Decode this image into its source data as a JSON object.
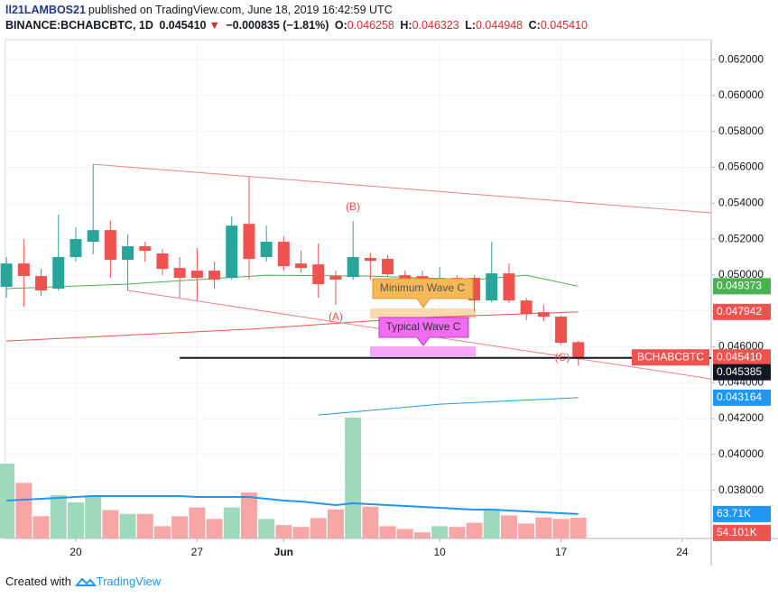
{
  "header": {
    "author": "ll21LAMBOS21",
    "published": "published on TradingView.com, June 18, 2019 16:42:59 UTC",
    "symbol": "BINANCE:BCHABCBTC, 1D",
    "last": "0.045410",
    "change": "−0.000835 (−1.81%)",
    "o_label": "O:",
    "o": "0.046258",
    "h_label": "H:",
    "h": "0.046323",
    "l_label": "L:",
    "l": "0.044948",
    "c_label": "C:",
    "c": "0.045410"
  },
  "chart_data": {
    "type": "candlestick",
    "x": [
      16,
      17,
      18,
      19,
      20,
      21,
      22,
      23,
      24,
      25,
      26,
      27,
      28,
      29,
      30,
      31,
      32,
      33,
      34,
      35,
      36,
      37,
      38,
      39,
      40,
      41,
      42,
      43,
      44,
      45,
      46,
      47,
      48,
      49
    ],
    "open": [
      0.04934,
      0.05064,
      0.04994,
      0.04924,
      0.051,
      0.05185,
      0.0525,
      0.05084,
      0.0516,
      0.0512,
      0.05039,
      0.05024,
      0.05024,
      0.04984,
      0.05285,
      0.051,
      0.05185,
      0.05064,
      0.05059,
      0.04994,
      0.04989,
      0.05095,
      0.0509,
      0.04999,
      0.04994,
      0.04899,
      0.04984,
      0.04984,
      0.04858,
      0.05009,
      0.04858,
      0.04793,
      0.04768,
      0.046258
    ],
    "high": [
      0.051,
      0.052,
      0.05034,
      0.05336,
      0.05265,
      0.05617,
      0.05301,
      0.05225,
      0.05185,
      0.05145,
      0.051,
      0.0515,
      0.05074,
      0.05326,
      0.05547,
      0.05275,
      0.05215,
      0.05135,
      0.05175,
      0.05024,
      0.05301,
      0.05125,
      0.0511,
      0.05024,
      0.05024,
      0.05044,
      0.04999,
      0.04999,
      0.05185,
      0.05064,
      0.04873,
      0.04833,
      0.04773,
      0.046323
    ],
    "low": [
      0.04873,
      0.04823,
      0.04883,
      0.04914,
      0.05074,
      0.05115,
      0.04984,
      0.04914,
      0.05074,
      0.04999,
      0.04873,
      0.04858,
      0.04924,
      0.04974,
      0.04974,
      0.05074,
      0.05024,
      0.05014,
      0.04873,
      0.04833,
      0.04974,
      0.04974,
      0.04994,
      0.04924,
      0.04873,
      0.04873,
      0.04873,
      0.04798,
      0.04848,
      0.04843,
      0.04748,
      0.04743,
      0.04612,
      0.044948
    ],
    "close": [
      0.05064,
      0.04994,
      0.04914,
      0.051,
      0.052,
      0.0525,
      0.05084,
      0.0516,
      0.05135,
      0.05034,
      0.04984,
      0.04984,
      0.04974,
      0.05275,
      0.0509,
      0.05185,
      0.05049,
      0.05039,
      0.04949,
      0.04974,
      0.051,
      0.05079,
      0.05004,
      0.04949,
      0.04959,
      0.04984,
      0.04949,
      0.04858,
      0.05009,
      0.04858,
      0.04783,
      0.04768,
      0.04622,
      0.04541
    ],
    "up_color": "#26a69a",
    "down_color": "#ef5350",
    "last_label": "0.045410",
    "symbol_tag": "BCHABCBTC",
    "xlim": [
      15.94,
      56.67
    ],
    "xticks": [
      20,
      27,
      {
        "value": 32,
        "label": "Jun"
      },
      {
        "value": 41,
        "label": "10"
      },
      {
        "value": 48,
        "label": "17"
      },
      {
        "value": 55,
        "label": "24"
      }
    ],
    "ylim": [
      0.03532,
      0.06311
    ],
    "yticks": [
      {
        "value": 0.038,
        "label": "0.038000"
      },
      {
        "value": 0.04,
        "label": "0.040000"
      },
      {
        "value": 0.042,
        "label": "0.042000"
      },
      {
        "value": 0.044,
        "label": "0.044000"
      },
      {
        "value": 0.046,
        "label": "0.046000"
      },
      {
        "value": 0.048,
        "label": "0.048000"
      },
      {
        "value": 0.05,
        "label": "0.050000"
      },
      {
        "value": 0.052,
        "label": "0.052000"
      },
      {
        "value": 0.054,
        "label": "0.054000"
      },
      {
        "value": 0.056,
        "label": "0.056000"
      },
      {
        "value": 0.058,
        "label": "0.058000"
      },
      {
        "value": 0.06,
        "label": "0.060000"
      },
      {
        "value": 0.062,
        "label": "0.062000"
      }
    ],
    "grid": true,
    "moving_averages": [
      {
        "color": "#4caf50",
        "x": [
          16,
          23,
          31,
          37,
          43,
          46,
          49
        ],
        "values": [
          0.04924,
          0.04949,
          0.04999,
          0.04994,
          0.04974,
          0.04999,
          0.049373
        ],
        "label": "0.049373"
      },
      {
        "color": "#ef5350",
        "x": [
          16,
          30,
          40,
          49
        ],
        "values": [
          0.04632,
          0.04698,
          0.04763,
          0.047942
        ],
        "label": "0.047942"
      },
      {
        "color": "#2196f3",
        "x": [
          34,
          41,
          49
        ],
        "values": [
          0.0422,
          0.0428,
          0.043164
        ],
        "label": "0.043164"
      }
    ],
    "trendlines": [
      {
        "color": "#f08080",
        "x": [
          21,
          56.67
        ],
        "values": [
          0.05617,
          0.05346
        ]
      },
      {
        "color": "#f08080",
        "x": [
          23,
          56.67
        ],
        "values": [
          0.04914,
          0.04421
        ]
      }
    ],
    "hline": {
      "value": 0.045385,
      "x": [
        26,
        56.67
      ],
      "label": "0.045385",
      "color": "#131722"
    },
    "volume": {
      "values": [
        195000,
        145000,
        58000,
        113000,
        94000,
        113000,
        74000,
        64000,
        64000,
        32000,
        58000,
        81000,
        51000,
        81000,
        120000,
        51000,
        35000,
        30000,
        53000,
        76000,
        315000,
        83000,
        32000,
        25000,
        16000,
        32000,
        30000,
        41000,
        78000,
        60000,
        39000,
        55000,
        51000,
        54101
      ],
      "last_label": "54.101K",
      "ylim": [
        0,
        1300000
      ],
      "up_color": "#9fd9bd",
      "down_color": "#f7a6a6",
      "ma": {
        "values": [
          98800,
          101100,
          103500,
          105800,
          108200,
          110500,
          110500,
          110500,
          110500,
          110500,
          110500,
          108200,
          108200,
          108200,
          108200,
          103500,
          98800,
          96400,
          91700,
          87000,
          91700,
          89400,
          87000,
          84700,
          82300,
          80000,
          77600,
          75300,
          75300,
          72900,
          70600,
          68200,
          65900,
          63710
        ],
        "color": "#2196f3",
        "label": "63.71K"
      }
    },
    "annotations": {
      "b": "(B)",
      "a": "(A)",
      "c": "(C)",
      "min_wave": "Minimum Wave C",
      "typ_wave": "Typical Wave C"
    }
  },
  "footer": {
    "created": "Created with",
    "brand": "TradingView"
  }
}
